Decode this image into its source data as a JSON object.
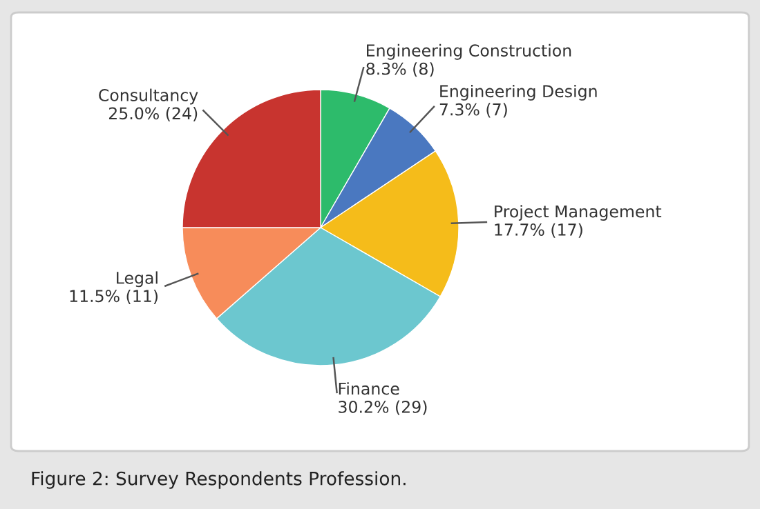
{
  "chart_data": {
    "type": "pie",
    "categories": [
      "Engineering Construction",
      "Engineering Design",
      "Project Management",
      "Finance",
      "Legal",
      "Consultancy"
    ],
    "values": [
      8,
      7,
      17,
      29,
      11,
      24
    ],
    "value_labels": [
      "8.3% (8)",
      "7.3% (7)",
      "17.7% (17)",
      "30.2% (29)",
      "11.5% (11)",
      "25.0% (24)"
    ],
    "colors": [
      "#2dbb6b",
      "#4a78c0",
      "#f5bc1a",
      "#6cc7cf",
      "#f78c5a",
      "#c8342f"
    ],
    "annotations": [
      "Figure 2: Survey Respondents Profession."
    ]
  }
}
